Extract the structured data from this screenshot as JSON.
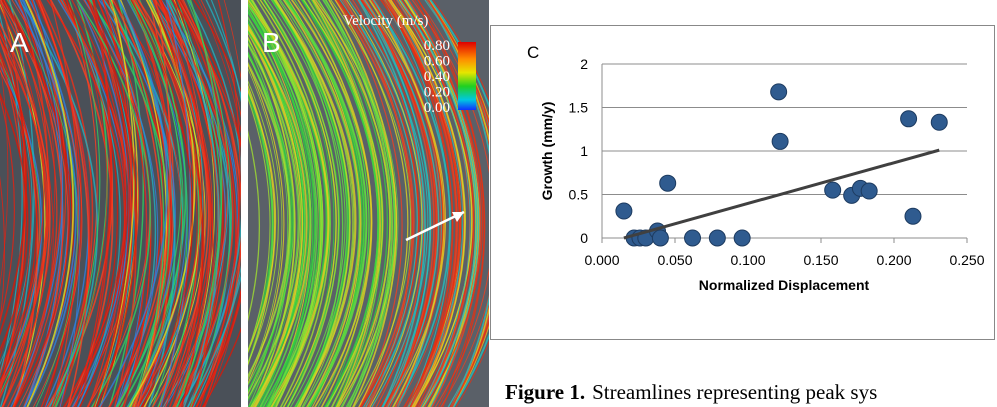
{
  "panels": {
    "a": "A",
    "b": "B"
  },
  "colorbar": {
    "title": "Velocity (m/s)",
    "labels": [
      "0.80",
      "0.60",
      "0.40",
      "0.20",
      "0.00"
    ]
  },
  "chart_data": {
    "type": "scatter",
    "panel_label": "C",
    "x_label": "Normalized Displacement",
    "y_label": "Growth (mm/y)",
    "x": [
      0.015,
      0.022,
      0.026,
      0.03,
      0.038,
      0.04,
      0.045,
      0.062,
      0.079,
      0.096,
      0.121,
      0.122,
      0.158,
      0.171,
      0.177,
      0.183,
      0.21,
      0.213,
      0.231
    ],
    "values": [
      0.31,
      0,
      0,
      0,
      0.08,
      0,
      0.63,
      0,
      0,
      0,
      1.68,
      1.11,
      0.55,
      0.49,
      0.57,
      0.54,
      1.37,
      0.25,
      1.33
    ],
    "color": "#2f5b8f",
    "trendline": {
      "x": [
        0.015,
        0.231
      ],
      "y": [
        0.0,
        1.01
      ],
      "color": "#404040"
    },
    "xlim": [
      0,
      0.25
    ],
    "ylim": [
      0,
      2
    ],
    "xticks": [
      {
        "value": 0,
        "label": "0.000"
      },
      {
        "value": 0.05,
        "label": "0.050"
      },
      {
        "value": 0.1,
        "label": "0.100"
      },
      {
        "value": 0.15,
        "label": "0.150"
      },
      {
        "value": 0.2,
        "label": "0.200"
      },
      {
        "value": 0.25,
        "label": "0.250"
      }
    ],
    "yticks": [
      0,
      0.5,
      1,
      1.5,
      2
    ],
    "grid": true
  },
  "caption": {
    "label": "Figure 1.",
    "text": "Streamlines representing peak sys"
  }
}
